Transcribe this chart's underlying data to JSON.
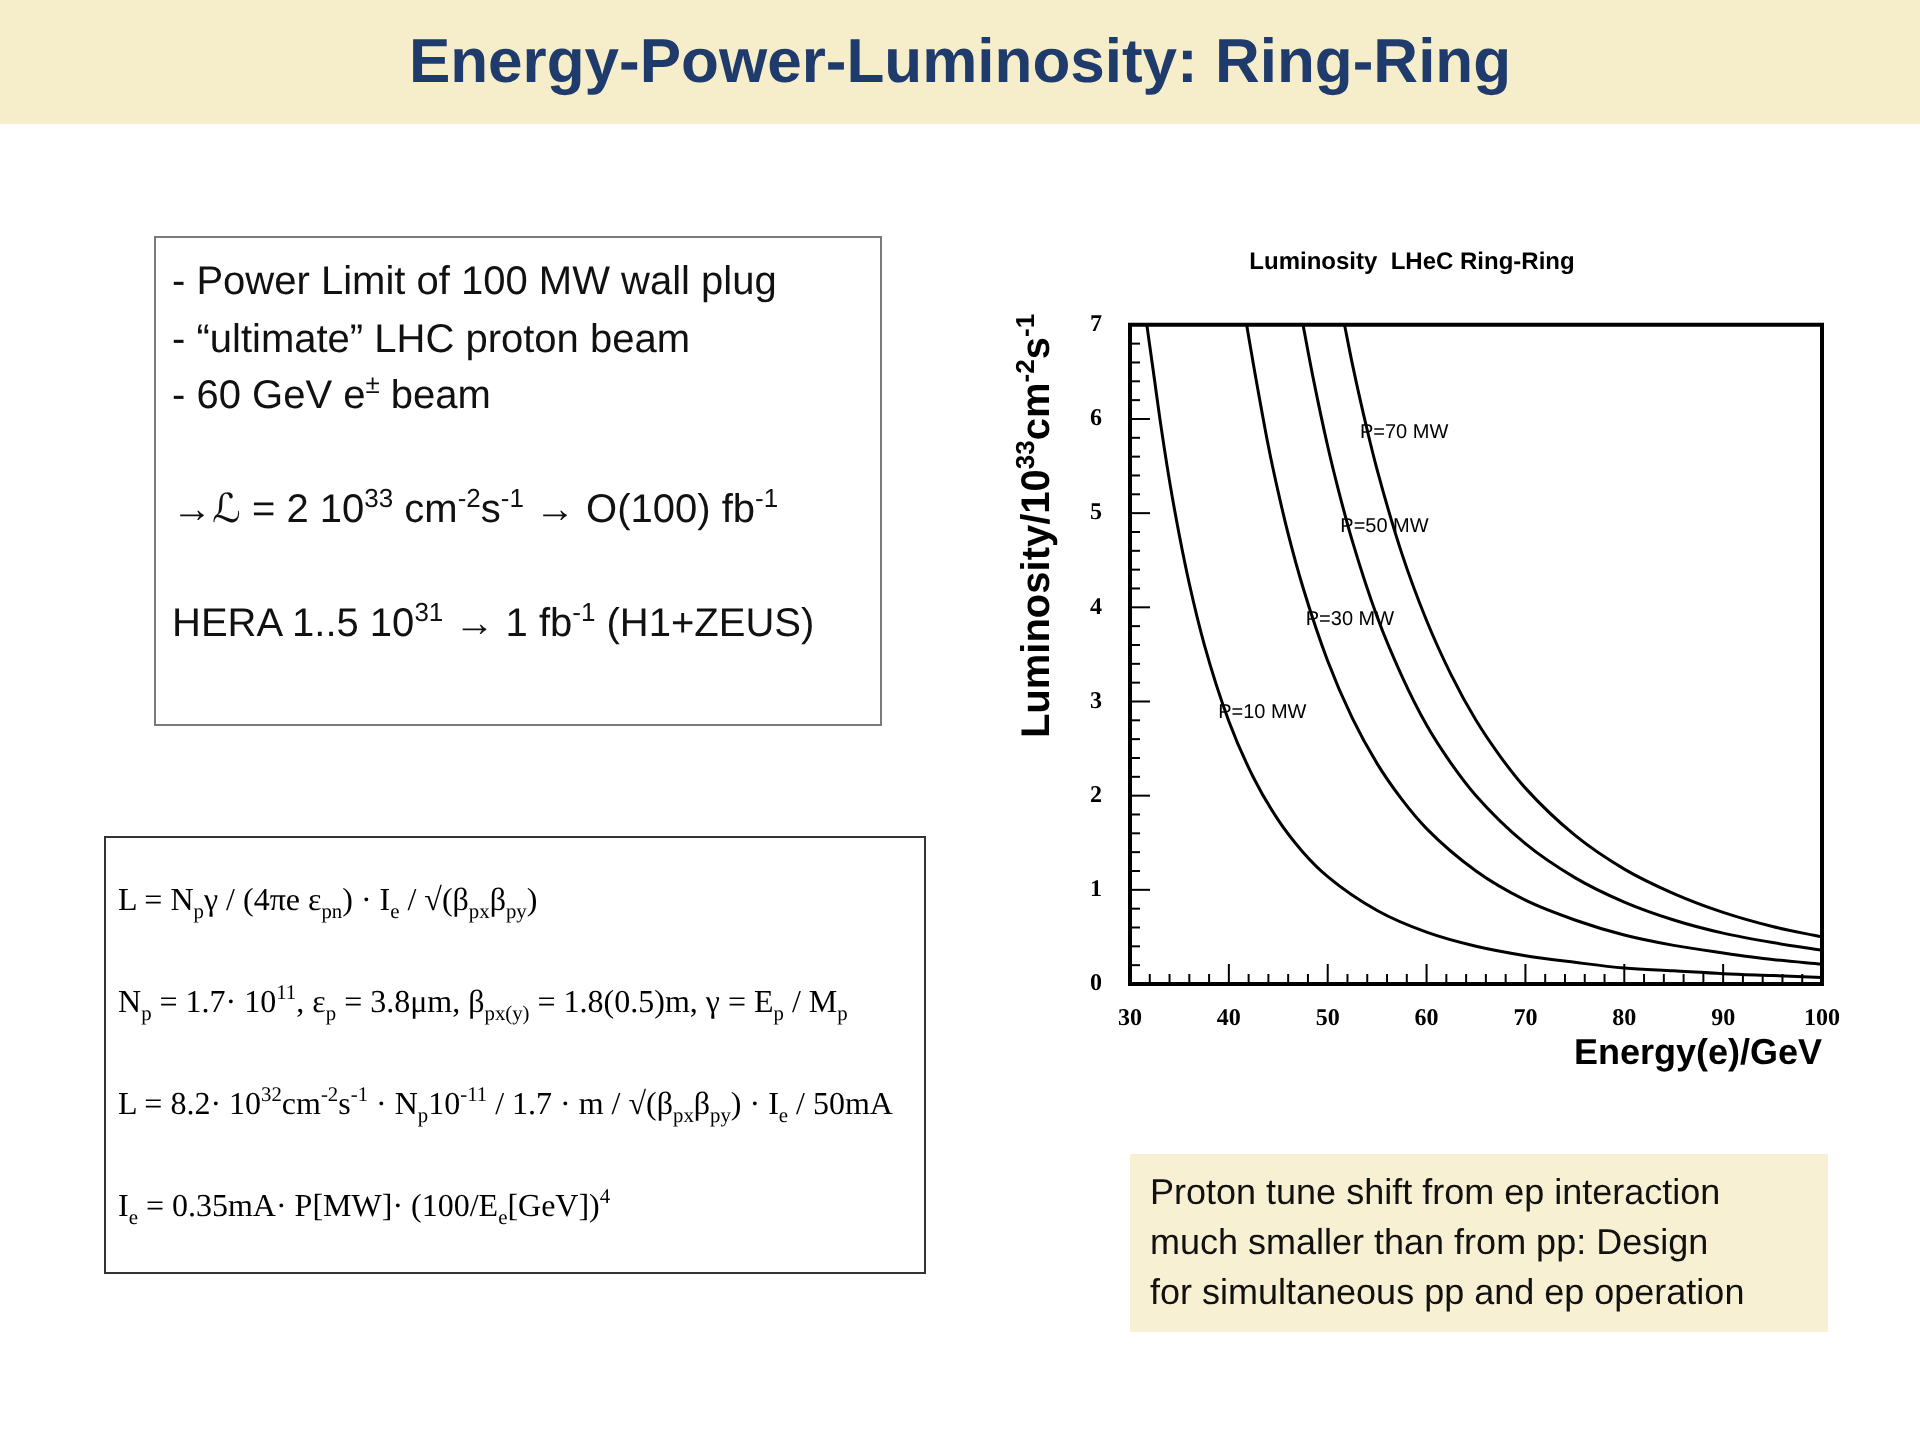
{
  "chart_data": {
    "type": "line",
    "title": "Energy-Power-Luminosity: Ring-Ring",
    "subtitle": "Luminosity  LHeC Ring-Ring",
    "xlabel": "Energy(e)/GeV",
    "ylabel": "Luminosity/10$^{33}$cm$^{-2}$s$^{-1}$",
    "annotations": [
      "- Power Limit of 100 MW wall plug",
      "- “ultimate” LHC proton beam",
      "- 60 GeV e$^{±}$ beam",
      "→ℒ = 2 10$^{33}$ cm$^{-2}$s$^{-1}$ → O(100) fb$^{-1}$",
      "HERA 1..5 10$^{31}$ → 1 fb$^{-1}$ (H1+ZEUS)",
      "L = N$_{p}$γ / (4πe ε$_{pn}$) · I$_{e}$ / √(β$_{px}$β$_{py}$)",
      "N$_{p}$ = 1.7· 10$^{11}$, ε$_{p}$ = 3.8μm, β$_{px(y)}$ = 1.8(0.5)m, γ = E$_{p}$ / M$_{p}$",
      "L = 8.2· 10$^{32}$cm$^{-2}$s$^{-1}$ · N$_{p}$10$^{-11}$ / 1.7 · m / √(β$_{px}$β$_{py}$) · I$_{e}$ / 50mA",
      "I$_{e}$ = 0.35mA· P[MW]· (100/E$_{e}$[GeV])$^{4}$",
      "Proton tune shift from ep interaction much smaller than from pp: Design for simultaneous pp and ep operation"
    ],
    "series": [
      {
        "name": "P=10 MW",
        "color": "#000000",
        "x": [
          31.7,
          32.5,
          33,
          34,
          35,
          36,
          37.5,
          40,
          42.5,
          45,
          47.5,
          50,
          55,
          60,
          65,
          70,
          75,
          80,
          85,
          90,
          95,
          100
        ],
        "values": [
          7.0,
          6.4,
          6.02,
          5.34,
          4.76,
          4.25,
          3.61,
          2.79,
          2.19,
          1.74,
          1.4,
          1.14,
          0.78,
          0.55,
          0.4,
          0.3,
          0.23,
          0.17,
          0.14,
          0.11,
          0.09,
          0.07
        ]
      },
      {
        "name": "P=30 MW",
        "color": "#000000",
        "x": [
          41.8,
          42.5,
          44,
          45,
          46,
          47.5,
          50,
          52.5,
          55,
          57.5,
          60,
          65,
          70,
          75,
          80,
          85,
          90,
          95,
          100
        ],
        "values": [
          7.0,
          6.57,
          5.71,
          5.22,
          4.78,
          4.21,
          3.43,
          2.82,
          2.34,
          1.96,
          1.65,
          1.2,
          0.89,
          0.68,
          0.52,
          0.41,
          0.33,
          0.26,
          0.21
        ]
      },
      {
        "name": "P=50 MW",
        "color": "#000000",
        "x": [
          47.5,
          48.5,
          50,
          51,
          52.5,
          55,
          57.5,
          60,
          62.5,
          65,
          70,
          75,
          80,
          85,
          90,
          95,
          100
        ],
        "values": [
          7.0,
          6.45,
          5.71,
          5.28,
          4.7,
          3.9,
          3.27,
          2.75,
          2.34,
          2.0,
          1.49,
          1.13,
          0.87,
          0.68,
          0.54,
          0.44,
          0.36
        ]
      },
      {
        "name": "P=70 MW",
        "color": "#000000",
        "x": [
          51.7,
          52.5,
          54,
          55,
          57.5,
          60,
          62.5,
          65,
          67.5,
          70,
          75,
          80,
          85,
          90,
          95,
          100
        ],
        "values": [
          7.0,
          6.58,
          5.88,
          5.46,
          4.57,
          3.86,
          3.28,
          2.8,
          2.41,
          2.08,
          1.58,
          1.22,
          0.96,
          0.76,
          0.61,
          0.5
        ]
      }
    ],
    "xlim": [
      30,
      100
    ],
    "ylim": [
      0,
      7
    ],
    "xticks": [
      30,
      {
        "value": 32,
        "label": null
      },
      {
        "value": 34,
        "label": null
      },
      {
        "value": 36,
        "label": null
      },
      {
        "value": 38,
        "label": null
      },
      40,
      {
        "value": 42,
        "label": null
      },
      {
        "value": 44,
        "label": null
      },
      {
        "value": 46,
        "label": null
      },
      {
        "value": 48,
        "label": null
      },
      50,
      {
        "value": 52,
        "label": null
      },
      {
        "value": 54,
        "label": null
      },
      {
        "value": 56,
        "label": null
      },
      {
        "value": 58,
        "label": null
      },
      60,
      {
        "value": 62,
        "label": null
      },
      {
        "value": 64,
        "label": null
      },
      {
        "value": 66,
        "label": null
      },
      {
        "value": 68,
        "label": null
      },
      70,
      {
        "value": 72,
        "label": null
      },
      {
        "value": 74,
        "label": null
      },
      {
        "value": 76,
        "label": null
      },
      {
        "value": 78,
        "label": null
      },
      80,
      {
        "value": 82,
        "label": null
      },
      {
        "value": 84,
        "label": null
      },
      {
        "value": 86,
        "label": null
      },
      {
        "value": 88,
        "label": null
      },
      90,
      {
        "value": 92,
        "label": null
      },
      {
        "value": 94,
        "label": null
      },
      {
        "value": 96,
        "label": null
      },
      {
        "value": 98,
        "label": null
      },
      100
    ],
    "yticks": [
      0,
      {
        "value": 0.2,
        "label": null
      },
      {
        "value": 0.4,
        "label": null
      },
      {
        "value": 0.6,
        "label": null
      },
      {
        "value": 0.8,
        "label": null
      },
      1,
      {
        "value": 1.2,
        "label": null
      },
      {
        "value": 1.4,
        "label": null
      },
      {
        "value": 1.6,
        "label": null
      },
      {
        "value": 1.8,
        "label": null
      },
      2,
      {
        "value": 2.2,
        "label": null
      },
      {
        "value": 2.4,
        "label": null
      },
      {
        "value": 2.6,
        "label": null
      },
      {
        "value": 2.8,
        "label": null
      },
      3,
      {
        "value": 3.2,
        "label": null
      },
      {
        "value": 3.4,
        "label": null
      },
      {
        "value": 3.6,
        "label": null
      },
      {
        "value": 3.8,
        "label": null
      },
      4,
      {
        "value": 4.2,
        "label": null
      },
      {
        "value": 4.4,
        "label": null
      },
      {
        "value": 4.6,
        "label": null
      },
      {
        "value": 4.8,
        "label": null
      },
      5,
      {
        "value": 5.2,
        "label": null
      },
      {
        "value": 5.4,
        "label": null
      },
      {
        "value": 5.6,
        "label": null
      },
      {
        "value": 5.8,
        "label": null
      },
      6,
      {
        "value": 6.2,
        "label": null
      },
      {
        "value": 6.4,
        "label": null
      },
      {
        "value": 6.6,
        "label": null
      },
      {
        "value": 6.8,
        "label": null
      },
      7
    ],
    "marker": "none",
    "line_style": "solid"
  }
}
